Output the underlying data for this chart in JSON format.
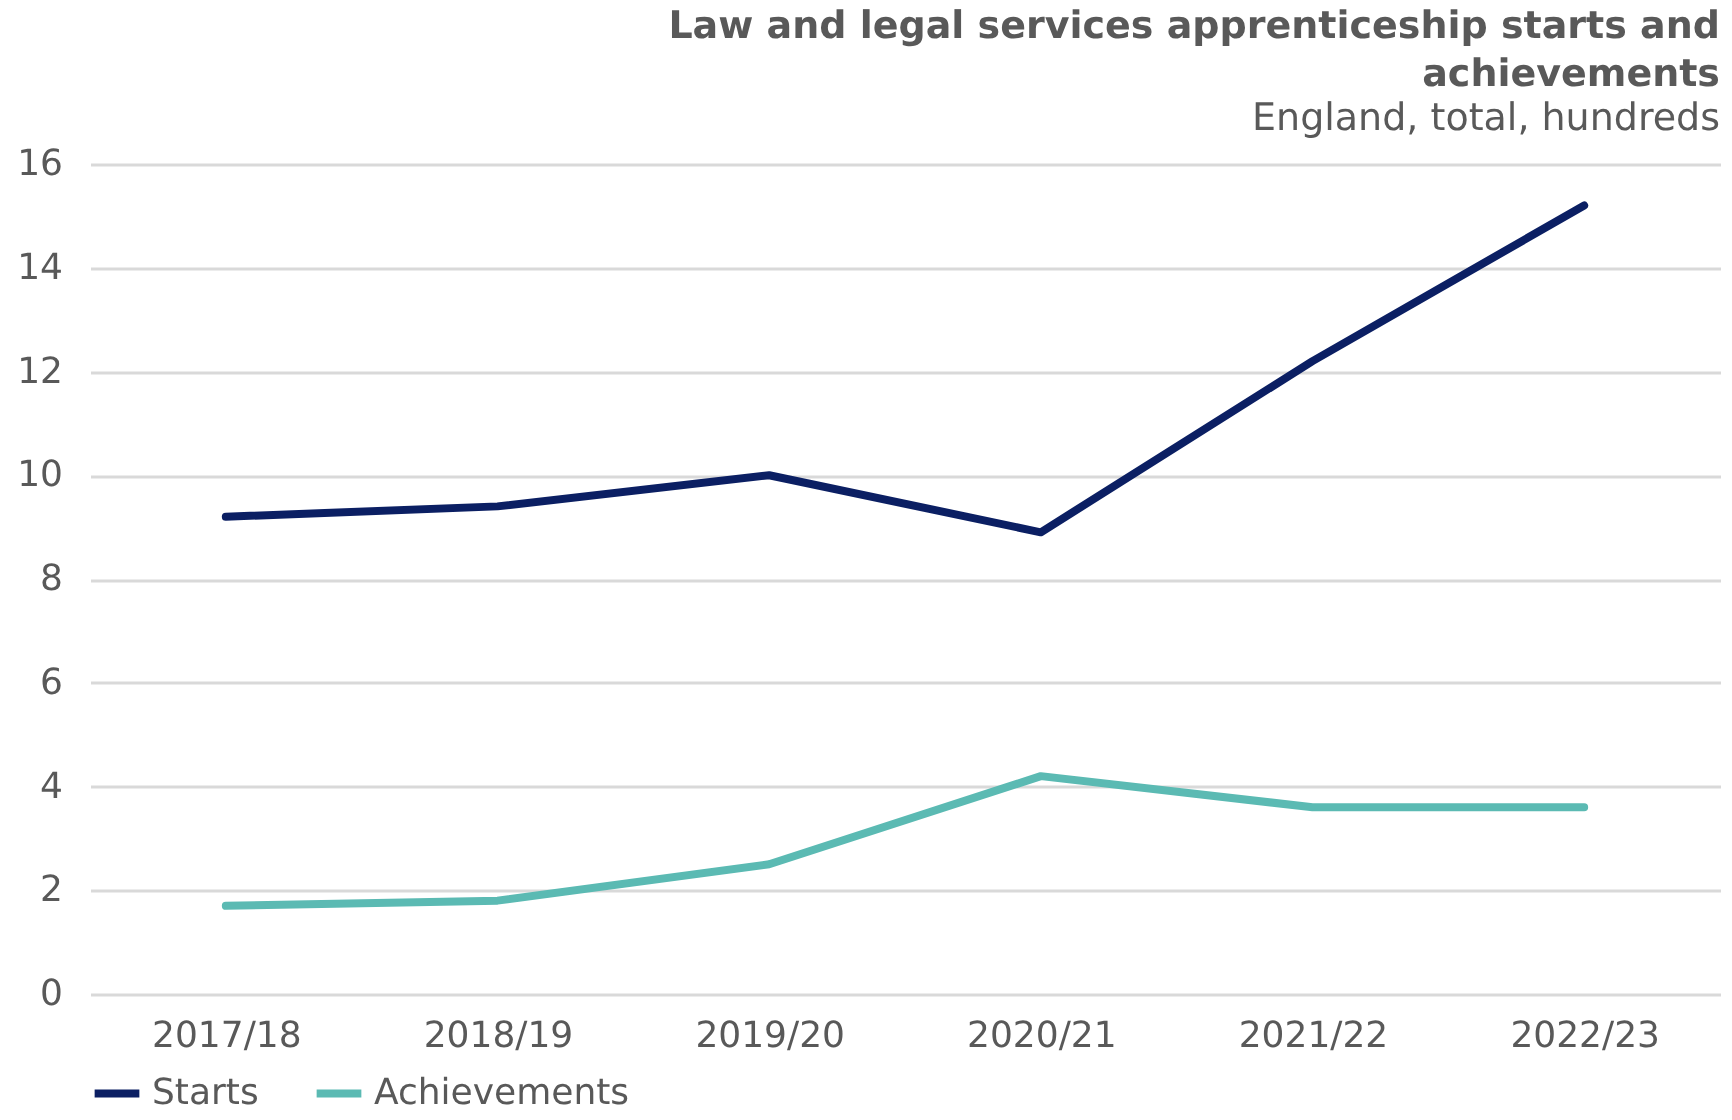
{
  "chart_data": {
    "type": "line",
    "title": "Law and legal services apprenticeship starts and achievements",
    "subtitle": "England, total, hundreds",
    "categories": [
      "2017/18",
      "2018/19",
      "2019/20",
      "2020/21",
      "2021/22",
      "2022/23"
    ],
    "series": [
      {
        "name": "Starts",
        "color": "#0b1f63",
        "values": [
          9.2,
          9.4,
          10.0,
          8.9,
          12.2,
          15.2
        ]
      },
      {
        "name": "Achievements",
        "color": "#5bbab3",
        "values": [
          1.7,
          1.8,
          2.5,
          4.2,
          3.6,
          3.6
        ]
      }
    ],
    "ylim": [
      0,
      16
    ],
    "yticks": [
      0,
      2,
      4,
      6,
      8,
      10,
      12,
      14,
      16
    ],
    "grid": "y",
    "legend": "bottom",
    "marker": "none",
    "line_style": "solid"
  }
}
